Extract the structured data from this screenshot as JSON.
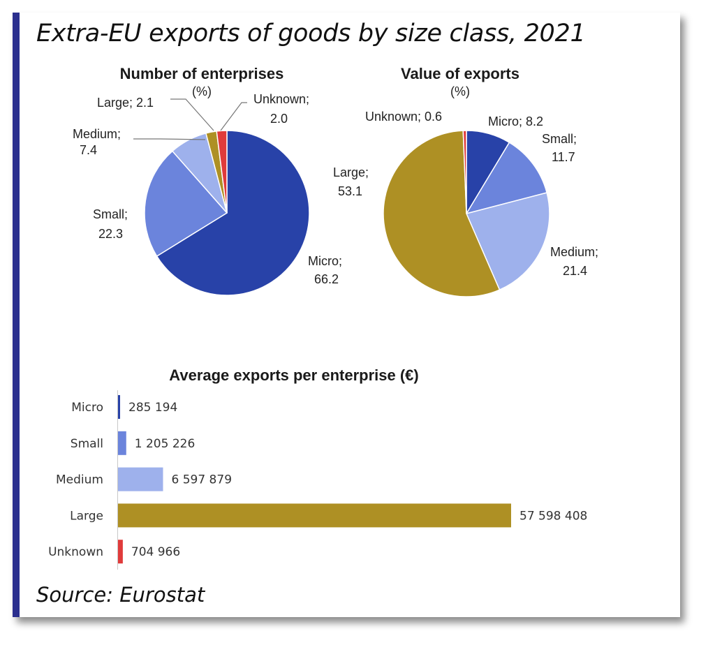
{
  "title": "Extra-EU exports of goods by size class, 2021",
  "source": "Source: Eurostat",
  "colors": {
    "micro": "#2842a8",
    "small": "#6b84dc",
    "medium": "#9eb1ec",
    "large": "#ae9024",
    "unknown": "#e03b3b",
    "accent": "#2b2f8e"
  },
  "chart_data": [
    {
      "type": "pie",
      "title": "Number of enterprises",
      "unit": "(%)",
      "slices": [
        {
          "label": "Micro;",
          "value": 66.2,
          "value_label": "66.2",
          "color_key": "micro"
        },
        {
          "label": "Small;",
          "value": 22.3,
          "value_label": "22.3",
          "color_key": "small"
        },
        {
          "label": "Medium;",
          "value": 7.4,
          "value_label": "7.4",
          "color_key": "medium"
        },
        {
          "label": "Large;",
          "value": 2.1,
          "value_label": "2.1",
          "color_key": "large"
        },
        {
          "label": "Unknown;",
          "value": 2.0,
          "value_label": "2.0",
          "color_key": "unknown"
        }
      ]
    },
    {
      "type": "pie",
      "title": "Value of exports",
      "unit": "(%)",
      "slices": [
        {
          "label": "Micro;",
          "value": 8.2,
          "value_label": "8.2",
          "color_key": "micro"
        },
        {
          "label": "Small;",
          "value": 11.7,
          "value_label": "11.7",
          "color_key": "small"
        },
        {
          "label": "Medium;",
          "value": 21.4,
          "value_label": "21.4",
          "color_key": "medium"
        },
        {
          "label": "Large;",
          "value": 53.1,
          "value_label": "53.1",
          "color_key": "large"
        },
        {
          "label": "Unknown;",
          "value": 0.6,
          "value_label": "0.6",
          "color_key": "unknown"
        }
      ]
    },
    {
      "type": "bar",
      "orientation": "horizontal",
      "title": "Average exports per enterprise (€)",
      "categories": [
        "Micro",
        "Small",
        "Medium",
        "Large",
        "Unknown"
      ],
      "values": [
        285194,
        1205226,
        6597879,
        57598408,
        704966
      ],
      "value_labels": [
        "285 194",
        "1 205 226",
        "6 597 879",
        "57 598 408",
        "704 966"
      ],
      "color_keys": [
        "micro",
        "small",
        "medium",
        "large",
        "unknown"
      ],
      "xlim": [
        0,
        57598408
      ]
    }
  ]
}
